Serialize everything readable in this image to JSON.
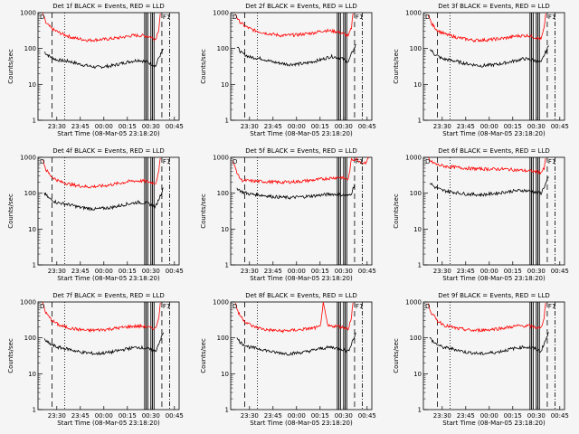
{
  "colors": {
    "background": "#f5f5f5",
    "events": "#000000",
    "lld": "#ff0000",
    "axes": "#000000"
  },
  "chart_data": [
    {
      "type": "line",
      "title": "Det 1f BLACK = Events, RED = LLD",
      "xlabel": "Start Time (08-Mar-05 23:18:20)",
      "ylabel": "Counts/sec",
      "yscale": "log",
      "ylim": [
        1,
        1000
      ],
      "x_tick_labels": [
        "23:30",
        "23:45",
        "00:00",
        "00:15",
        "00:30",
        "00:45"
      ],
      "y_tick_labels": [
        "1",
        "10",
        "100",
        "1000"
      ],
      "marker_labels": [
        "D",
        "F1"
      ],
      "series": [
        {
          "color": "#000000",
          "x": [
            "23:22",
            "23:25",
            "23:30",
            "23:38",
            "23:45",
            "23:55",
            "00:05",
            "00:15",
            "00:22",
            "00:28",
            "00:33",
            "00:35",
            "00:38"
          ],
          "y": [
            80,
            62,
            48,
            44,
            36,
            30,
            33,
            42,
            48,
            42,
            32,
            55,
            95
          ]
        },
        {
          "color": "#ff0000",
          "x": [
            "23:21",
            "23:23",
            "23:27",
            "23:32",
            "23:40",
            "23:50",
            "00:00",
            "00:10",
            "00:18",
            "00:25",
            "00:30",
            "00:33",
            "00:35",
            "00:36"
          ],
          "y": [
            950,
            520,
            350,
            270,
            200,
            170,
            180,
            200,
            230,
            230,
            210,
            180,
            350,
            950
          ]
        }
      ]
    },
    {
      "type": "line",
      "title": "Det 2f BLACK = Events, RED = LLD",
      "xlabel": "Start Time (08-Mar-05 23:18:20)",
      "ylabel": "Counts/sec",
      "yscale": "log",
      "ylim": [
        1,
        1000
      ],
      "x_tick_labels": [
        "23:30",
        "23:45",
        "00:00",
        "00:15",
        "00:30",
        "00:45"
      ],
      "y_tick_labels": [
        "1",
        "10",
        "100",
        "1000"
      ],
      "marker_labels": [
        "D",
        "F1"
      ],
      "series": [
        {
          "color": "#000000",
          "x": [
            "23:22",
            "23:25",
            "23:30",
            "23:38",
            "23:45",
            "23:55",
            "00:05",
            "00:15",
            "00:22",
            "00:28",
            "00:33",
            "00:35",
            "00:38"
          ],
          "y": [
            110,
            75,
            58,
            52,
            42,
            36,
            38,
            48,
            60,
            55,
            42,
            70,
            130
          ]
        },
        {
          "color": "#ff0000",
          "x": [
            "23:21",
            "23:23",
            "23:27",
            "23:32",
            "23:40",
            "23:50",
            "00:00",
            "00:10",
            "00:18",
            "00:25",
            "00:30",
            "00:33",
            "00:35",
            "00:36"
          ],
          "y": [
            950,
            600,
            420,
            330,
            270,
            230,
            240,
            270,
            320,
            300,
            260,
            220,
            380,
            950
          ]
        }
      ]
    },
    {
      "type": "line",
      "title": "Det 3f BLACK = Events, RED = LLD",
      "xlabel": "Start Time (08-Mar-05 23:18:20)",
      "ylabel": "Counts/sec",
      "yscale": "log",
      "ylim": [
        1,
        1000
      ],
      "x_tick_labels": [
        "23:30",
        "23:45",
        "00:00",
        "00:15",
        "00:30",
        "00:45"
      ],
      "y_tick_labels": [
        "1",
        "10",
        "100",
        "1000"
      ],
      "marker_labels": [
        "D",
        "F1"
      ],
      "series": [
        {
          "color": "#000000",
          "x": [
            "23:22",
            "23:25",
            "23:30",
            "23:38",
            "23:45",
            "23:55",
            "00:05",
            "00:15",
            "00:22",
            "00:28",
            "00:33",
            "00:35",
            "00:38"
          ],
          "y": [
            100,
            70,
            52,
            45,
            38,
            33,
            36,
            44,
            52,
            48,
            40,
            65,
            120
          ]
        },
        {
          "color": "#ff0000",
          "x": [
            "23:21",
            "23:23",
            "23:27",
            "23:32",
            "23:40",
            "23:50",
            "00:00",
            "00:10",
            "00:18",
            "00:25",
            "00:30",
            "00:33",
            "00:35",
            "00:36"
          ],
          "y": [
            950,
            500,
            320,
            250,
            200,
            170,
            175,
            195,
            225,
            230,
            200,
            180,
            360,
            950
          ]
        }
      ]
    },
    {
      "type": "line",
      "title": "Det 4f BLACK = Events, RED = LLD",
      "xlabel": "Start Time (08-Mar-05 23:18:20)",
      "ylabel": "Counts/sec",
      "yscale": "log",
      "ylim": [
        1,
        1000
      ],
      "x_tick_labels": [
        "23:30",
        "23:45",
        "00:00",
        "00:15",
        "00:30",
        "00:45"
      ],
      "y_tick_labels": [
        "1",
        "10",
        "100",
        "1000"
      ],
      "marker_labels": [
        "D",
        "F1"
      ],
      "series": [
        {
          "color": "#000000",
          "x": [
            "23:22",
            "23:25",
            "23:30",
            "23:38",
            "23:45",
            "23:55",
            "00:05",
            "00:15",
            "00:22",
            "00:28",
            "00:33",
            "00:35",
            "00:38"
          ],
          "y": [
            100,
            72,
            55,
            48,
            40,
            36,
            40,
            50,
            56,
            52,
            42,
            68,
            140
          ]
        },
        {
          "color": "#ff0000",
          "x": [
            "23:21",
            "23:23",
            "23:27",
            "23:32",
            "23:40",
            "23:50",
            "00:00",
            "00:10",
            "00:18",
            "00:25",
            "00:30",
            "00:33",
            "00:35",
            "00:36"
          ],
          "y": [
            950,
            450,
            280,
            210,
            170,
            150,
            160,
            190,
            220,
            220,
            200,
            190,
            380,
            950
          ]
        }
      ]
    },
    {
      "type": "line",
      "title": "Det 5f BLACK = Events, RED = LLD",
      "xlabel": "Start Time (08-Mar-05 23:18:20)",
      "ylabel": "Counts/sec",
      "yscale": "log",
      "ylim": [
        1,
        1000
      ],
      "x_tick_labels": [
        "23:30",
        "23:45",
        "00:00",
        "00:15",
        "00:30",
        "00:45"
      ],
      "y_tick_labels": [
        "1",
        "10",
        "100",
        "1000"
      ],
      "marker_labels": [
        "D",
        "F1"
      ],
      "series": [
        {
          "color": "#000000",
          "x": [
            "23:22",
            "23:25",
            "23:30",
            "23:38",
            "23:45",
            "23:55",
            "00:05",
            "00:15",
            "00:22",
            "00:28",
            "00:33",
            "00:35",
            "00:37"
          ],
          "y": [
            140,
            110,
            95,
            88,
            80,
            75,
            80,
            88,
            95,
            90,
            85,
            100,
            180
          ]
        },
        {
          "color": "#ff0000",
          "x": [
            "23:19",
            "23:21",
            "23:23",
            "23:25",
            "23:30",
            "23:40",
            "23:50",
            "00:00",
            "00:10",
            "00:20",
            "00:28",
            "00:32",
            "00:33",
            "00:35",
            "00:38",
            "00:42",
            "00:44",
            "00:46"
          ],
          "y": [
            800,
            500,
            300,
            230,
            220,
            210,
            200,
            210,
            230,
            260,
            280,
            250,
            240,
            850,
            900,
            700,
            720,
            950
          ]
        }
      ]
    },
    {
      "type": "line",
      "title": "Det 6f BLACK = Events, RED = LLD",
      "xlabel": "Start Time (08-Mar-05 23:18:20)",
      "ylabel": "Counts/sec",
      "yscale": "log",
      "ylim": [
        1,
        1000
      ],
      "x_tick_labels": [
        "23:30",
        "23:45",
        "00:00",
        "00:15",
        "00:30",
        "00:45"
      ],
      "y_tick_labels": [
        "1",
        "10",
        "100",
        "1000"
      ],
      "marker_labels": [
        "D",
        "F1"
      ],
      "series": [
        {
          "color": "#000000",
          "x": [
            "23:22",
            "23:25",
            "23:30",
            "23:38",
            "23:45",
            "23:55",
            "00:05",
            "00:15",
            "00:22",
            "00:28",
            "00:33",
            "00:35",
            "00:38"
          ],
          "y": [
            200,
            150,
            120,
            105,
            95,
            90,
            100,
            115,
            120,
            110,
            100,
            150,
            280
          ]
        },
        {
          "color": "#ff0000",
          "x": [
            "23:21",
            "23:23",
            "23:27",
            "23:32",
            "23:40",
            "23:50",
            "00:00",
            "00:10",
            "00:18",
            "00:25",
            "00:30",
            "00:33",
            "00:35",
            "00:36"
          ],
          "y": [
            950,
            750,
            620,
            560,
            520,
            480,
            470,
            470,
            440,
            420,
            400,
            380,
            480,
            950
          ]
        }
      ]
    },
    {
      "type": "line",
      "title": "Det 7f BLACK = Events, RED = LLD",
      "xlabel": "Start Time (08-Mar-05 23:18:20)",
      "ylabel": "Counts/sec",
      "yscale": "log",
      "ylim": [
        1,
        1000
      ],
      "x_tick_labels": [
        "23:30",
        "23:45",
        "00:00",
        "00:15",
        "00:30",
        "00:45"
      ],
      "y_tick_labels": [
        "1",
        "10",
        "100",
        "1000"
      ],
      "marker_labels": [
        "D",
        "F1"
      ],
      "series": [
        {
          "color": "#000000",
          "x": [
            "23:22",
            "23:25",
            "23:30",
            "23:38",
            "23:45",
            "23:55",
            "00:05",
            "00:15",
            "00:22",
            "00:28",
            "00:33",
            "00:35",
            "00:38"
          ],
          "y": [
            90,
            70,
            55,
            48,
            40,
            36,
            40,
            50,
            55,
            50,
            42,
            70,
            140
          ]
        },
        {
          "color": "#ff0000",
          "x": [
            "23:21",
            "23:23",
            "23:27",
            "23:32",
            "23:40",
            "23:50",
            "00:00",
            "00:10",
            "00:18",
            "00:25",
            "00:30",
            "00:33",
            "00:35",
            "00:36"
          ],
          "y": [
            950,
            500,
            300,
            220,
            180,
            160,
            170,
            190,
            210,
            210,
            190,
            180,
            380,
            950
          ]
        }
      ]
    },
    {
      "type": "line",
      "title": "Det 8f BLACK = Events, RED = LLD",
      "xlabel": "Start Time (08-Mar-05 23:18:20)",
      "ylabel": "Counts/sec",
      "yscale": "log",
      "ylim": [
        1,
        1000
      ],
      "x_tick_labels": [
        "23:30",
        "23:45",
        "00:00",
        "00:15",
        "00:30",
        "00:45"
      ],
      "y_tick_labels": [
        "1",
        "10",
        "100",
        "1000"
      ],
      "marker_labels": [
        "D",
        "F1"
      ],
      "series": [
        {
          "color": "#000000",
          "x": [
            "23:22",
            "23:25",
            "23:30",
            "23:38",
            "23:45",
            "23:55",
            "00:05",
            "00:15",
            "00:22",
            "00:28",
            "00:33",
            "00:35",
            "00:38"
          ],
          "y": [
            95,
            70,
            55,
            48,
            40,
            36,
            40,
            50,
            55,
            50,
            42,
            70,
            140
          ]
        },
        {
          "color": "#ff0000",
          "x": [
            "23:21",
            "23:23",
            "23:27",
            "23:32",
            "23:40",
            "23:50",
            "00:00",
            "00:10",
            "00:15",
            "00:17",
            "00:20",
            "00:25",
            "00:30",
            "00:33",
            "00:35",
            "00:36"
          ],
          "y": [
            950,
            480,
            290,
            210,
            170,
            155,
            165,
            185,
            200,
            900,
            210,
            215,
            195,
            180,
            380,
            950
          ]
        }
      ]
    },
    {
      "type": "line",
      "title": "Det 9f BLACK = Events, RED = LLD",
      "xlabel": "Start Time (08-Mar-05 23:18:20)",
      "ylabel": "Counts/sec",
      "yscale": "log",
      "ylim": [
        1,
        1000
      ],
      "x_tick_labels": [
        "23:30",
        "23:45",
        "00:00",
        "00:15",
        "00:30",
        "00:45"
      ],
      "y_tick_labels": [
        "1",
        "10",
        "100",
        "1000"
      ],
      "marker_labels": [
        "D",
        "F1"
      ],
      "series": [
        {
          "color": "#000000",
          "x": [
            "23:22",
            "23:25",
            "23:30",
            "23:38",
            "23:45",
            "23:55",
            "00:05",
            "00:15",
            "00:22",
            "00:28",
            "00:33",
            "00:35",
            "00:38"
          ],
          "y": [
            100,
            72,
            55,
            48,
            40,
            36,
            40,
            50,
            56,
            52,
            42,
            70,
            140
          ]
        },
        {
          "color": "#ff0000",
          "x": [
            "23:21",
            "23:23",
            "23:27",
            "23:32",
            "23:40",
            "23:50",
            "00:00",
            "00:10",
            "00:18",
            "00:25",
            "00:30",
            "00:33",
            "00:35",
            "00:36"
          ],
          "y": [
            950,
            500,
            300,
            220,
            180,
            160,
            170,
            190,
            215,
            215,
            195,
            185,
            380,
            950
          ]
        }
      ]
    }
  ]
}
